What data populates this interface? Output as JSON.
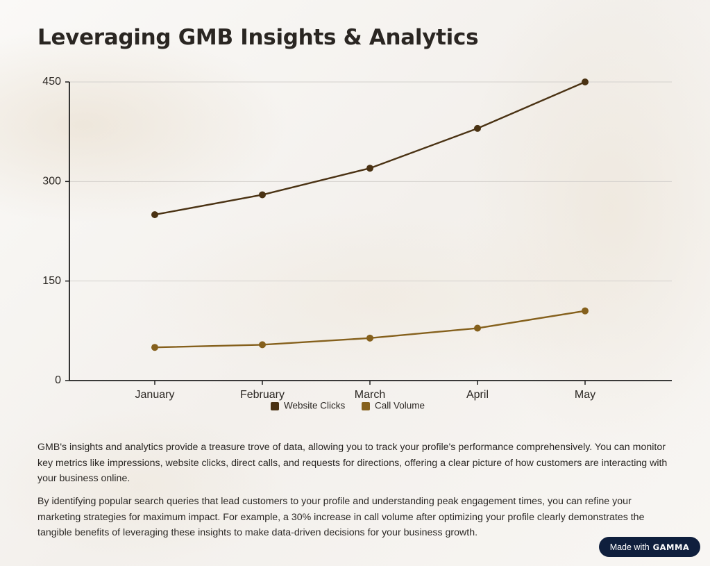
{
  "page": {
    "title": "Leveraging GMB Insights & Analytics",
    "paragraphs": [
      "GMB's insights and analytics provide a treasure trove of data, allowing you to track your profile's performance comprehensively. You can monitor key metrics like impressions, website clicks, direct calls, and requests for directions, offering a clear picture of how customers are interacting with your business online.",
      "By identifying popular search queries that lead customers to your profile and understanding peak engagement times, you can refine your marketing strategies for maximum impact. For example, a 30% increase in call volume after optimizing your profile clearly demonstrates the tangible benefits of leveraging these insights to make data-driven decisions for your business growth."
    ],
    "badge": {
      "prefix": "Made with",
      "brand": "GAMMA",
      "color": "#0f1f3d"
    }
  },
  "chart_data": {
    "type": "line",
    "categories": [
      "January",
      "February",
      "March",
      "April",
      "May"
    ],
    "series": [
      {
        "name": "Website Clicks",
        "values": [
          250,
          280,
          320,
          380,
          450
        ],
        "color": "#4a3213"
      },
      {
        "name": "Call Volume",
        "values": [
          50,
          54,
          64,
          79,
          105
        ],
        "color": "#85601c"
      }
    ],
    "ylim": [
      0,
      450
    ],
    "yticks": [
      0,
      150,
      300,
      450
    ],
    "grid": true,
    "legend": "bottom-center"
  }
}
